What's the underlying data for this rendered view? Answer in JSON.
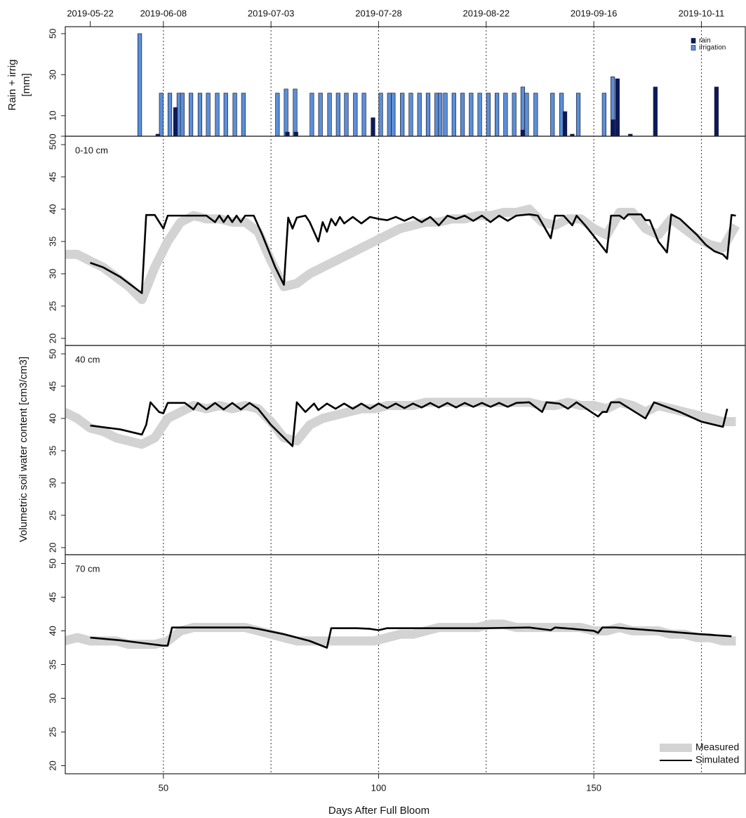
{
  "chart_data": [
    {
      "type": "bar",
      "ylabel": [
        "Rain + irrig",
        "[mm]"
      ],
      "xlim": [
        27.2,
        185.2
      ],
      "ylim": [
        0,
        53.4
      ],
      "yticks": [
        0,
        10,
        30,
        50
      ],
      "x2ticks": [
        {
          "value": 33,
          "label": "2019-05-22"
        },
        {
          "value": 50,
          "label": "2019-06-08"
        },
        {
          "value": 75,
          "label": "2019-07-03"
        },
        {
          "value": 100,
          "label": "2019-07-28"
        },
        {
          "value": 125,
          "label": "2019-08-22"
        },
        {
          "value": 150,
          "label": "2019-09-16"
        },
        {
          "value": 175,
          "label": "2019-10-11"
        }
      ],
      "vlines": [
        50,
        75,
        100,
        125,
        150,
        175
      ],
      "legend": "top-right",
      "series": [
        {
          "name": "rain",
          "color": "#0b1a5e",
          "x": [
            48.7,
            52.8,
            78.8,
            80.8,
            98.7,
            133.5,
            143.3,
            145,
            154.5,
            155.5,
            158.5,
            164.3,
            178.5
          ],
          "values": [
            1,
            14,
            2,
            2,
            9,
            3,
            12,
            1,
            8,
            28,
            1,
            24,
            24
          ]
        },
        {
          "name": "irrigation",
          "color": "#5b8fd9",
          "x": [
            44.5,
            49.5,
            51.5,
            53.6,
            54.4,
            56.4,
            58.5,
            60.4,
            62.5,
            64.5,
            66.6,
            68.6,
            76.5,
            78.5,
            80.6,
            84.5,
            86.5,
            88.6,
            90.6,
            92.5,
            94.6,
            96.6,
            100.5,
            102.5,
            103.4,
            105.5,
            107.5,
            109.5,
            111.5,
            113.5,
            114.3,
            115.5,
            117.5,
            119.5,
            121.5,
            123.5,
            125.5,
            127.5,
            129.5,
            131.5,
            133.5,
            134.4,
            136.5,
            140.4,
            142.5,
            146.4,
            152.4,
            154.4
          ],
          "values": [
            50,
            21,
            21,
            21,
            21,
            21,
            21,
            21,
            21,
            21,
            21,
            21,
            21,
            23,
            23,
            21,
            21,
            21,
            21,
            21,
            21,
            21,
            21,
            21,
            21,
            21,
            21,
            21,
            21,
            21,
            21,
            21,
            21,
            21,
            21,
            21,
            21,
            21,
            21,
            21,
            24,
            21,
            21,
            21,
            21,
            21,
            21,
            29
          ]
        }
      ]
    },
    {
      "type": "line",
      "annotation": "0-10 cm",
      "xlim": [
        27.2,
        185.2
      ],
      "ylim": [
        18.9,
        51.3
      ],
      "yticks": [
        20,
        25,
        30,
        35,
        40,
        45,
        50
      ],
      "series": [
        {
          "color": "#d3d3d3",
          "x": [
            27,
            30,
            33,
            36,
            39,
            42,
            45,
            48,
            51,
            54,
            57,
            60,
            63,
            66,
            69,
            72,
            75,
            78,
            81,
            84,
            87,
            90,
            93,
            96,
            99,
            102,
            105,
            108,
            111,
            114,
            117,
            120,
            123,
            126,
            129,
            132,
            135,
            138,
            141,
            144,
            147,
            150,
            153,
            156,
            159,
            162,
            165,
            168,
            171,
            174,
            177,
            180,
            183
          ],
          "values": [
            33,
            33,
            32,
            31,
            29.5,
            28,
            26,
            31,
            35,
            38,
            39,
            38.5,
            38.5,
            38,
            38,
            36.5,
            32,
            28,
            28.5,
            30,
            31,
            32,
            33,
            34,
            35,
            36,
            37,
            37.5,
            38,
            38,
            38.5,
            38.5,
            39,
            39,
            39.5,
            39.5,
            40,
            38,
            37.5,
            38.5,
            38.5,
            37,
            36,
            39.5,
            39.5,
            37,
            36,
            38.5,
            37,
            35.5,
            34.5,
            34,
            37.5
          ]
        },
        {
          "color": "#000000",
          "x": [
            33,
            36,
            40,
            45,
            46,
            48,
            50,
            51,
            55,
            60,
            62,
            63,
            64,
            65,
            66,
            67,
            68,
            69,
            71,
            73,
            76,
            78,
            79,
            80,
            81,
            83,
            84,
            86,
            87,
            88,
            89,
            90,
            91,
            92,
            94,
            96,
            98,
            100,
            102,
            104,
            106,
            108,
            110,
            112,
            114,
            116,
            118,
            120,
            122,
            124,
            126,
            128,
            130,
            132,
            135,
            137,
            140,
            141,
            143,
            145,
            146,
            148,
            151,
            153,
            154,
            156,
            157,
            158,
            161,
            162,
            163,
            165,
            167,
            168,
            170,
            174,
            176,
            178,
            180,
            181,
            182,
            183
          ],
          "values": [
            31.7,
            31,
            29.5,
            27,
            39.1,
            39.1,
            37,
            39,
            39,
            39,
            38,
            39,
            38,
            39,
            38,
            39,
            38,
            39,
            39,
            36,
            31,
            28.3,
            38.7,
            37,
            38.7,
            39,
            38,
            35,
            38,
            36.5,
            38.5,
            37.5,
            38.8,
            37.8,
            38.8,
            37.8,
            38.8,
            38.5,
            38.3,
            38.8,
            38.2,
            38.8,
            38,
            38.8,
            37.5,
            39,
            38.5,
            39,
            38.2,
            39,
            38,
            39,
            38.2,
            39,
            39.2,
            39,
            35.5,
            39,
            39,
            37.5,
            39,
            37.5,
            35,
            33.3,
            39,
            39,
            38.5,
            39.2,
            39.2,
            38.3,
            38.3,
            35,
            33.3,
            39.2,
            38.5,
            36,
            34.5,
            33.5,
            33,
            32.3,
            39.1,
            39
          ]
        }
      ]
    },
    {
      "type": "line",
      "annotation": "40 cm",
      "ylabel": "Volumetric soil water content [cm3/cm3]",
      "xlim": [
        27.2,
        185.2
      ],
      "ylim": [
        18.9,
        51.3
      ],
      "yticks": [
        20,
        25,
        30,
        35,
        40,
        45,
        50
      ],
      "series": [
        {
          "color": "#d3d3d3",
          "x": [
            27,
            30,
            33,
            36,
            39,
            42,
            45,
            48,
            51,
            54,
            57,
            60,
            63,
            66,
            69,
            72,
            75,
            78,
            81,
            84,
            87,
            90,
            93,
            96,
            99,
            102,
            105,
            108,
            111,
            114,
            117,
            120,
            123,
            126,
            129,
            132,
            135,
            138,
            141,
            144,
            147,
            150,
            153,
            156,
            159,
            162,
            165,
            168,
            171,
            174,
            177,
            180,
            183
          ],
          "values": [
            41,
            40,
            38.5,
            38,
            37,
            36.5,
            36,
            37,
            40,
            41,
            42,
            41.5,
            42,
            41.5,
            42,
            41.5,
            39.5,
            37,
            36.5,
            39,
            40,
            40.5,
            41,
            41.5,
            41.5,
            42,
            42,
            42,
            42.5,
            42.5,
            42.5,
            42.5,
            42.5,
            42.5,
            42.5,
            42.5,
            42.5,
            42,
            42,
            42.5,
            42,
            42,
            41.5,
            42.5,
            42,
            41,
            42,
            41.5,
            41,
            40.5,
            40,
            39.5,
            39.5
          ]
        },
        {
          "color": "#000000",
          "x": [
            33,
            40,
            45,
            46,
            47,
            49,
            50,
            51,
            55,
            57,
            58,
            60,
            62,
            64,
            66,
            68,
            70,
            72,
            75,
            80,
            81,
            83,
            85,
            86,
            88,
            90,
            92,
            94,
            96,
            98,
            100,
            102,
            104,
            106,
            108,
            110,
            112,
            114,
            116,
            118,
            120,
            122,
            124,
            126,
            128,
            130,
            132,
            135,
            138,
            139,
            142,
            144,
            146,
            151,
            152,
            153,
            154,
            156,
            162,
            164,
            170,
            175,
            180,
            181
          ],
          "values": [
            38.9,
            38.3,
            37.5,
            39,
            42.5,
            41,
            40.8,
            42.4,
            42.4,
            41.4,
            42.4,
            41.4,
            42.4,
            41.4,
            42.4,
            41.4,
            42.4,
            41.5,
            39,
            35.7,
            42.5,
            41,
            42.3,
            41.3,
            42.3,
            41.5,
            42.3,
            41.5,
            42.3,
            41.5,
            42.3,
            41.6,
            42.3,
            41.6,
            42.3,
            41.7,
            42.4,
            41.7,
            42.4,
            41.7,
            42.4,
            41.8,
            42.4,
            41.8,
            42.4,
            41.8,
            42.4,
            42.5,
            41,
            42.5,
            42.3,
            41.5,
            42.5,
            40.3,
            41,
            41,
            42.5,
            42.5,
            40,
            42.5,
            41,
            39.5,
            38.7,
            41.5
          ]
        }
      ]
    },
    {
      "type": "line",
      "annotation": "70 cm",
      "xlabel": "Days After Full Bloom",
      "xlim": [
        27.2,
        185.2
      ],
      "ylim": [
        18.8,
        51.3
      ],
      "yticks": [
        20,
        25,
        30,
        35,
        40,
        45,
        50
      ],
      "xticks": [
        50,
        100,
        150
      ],
      "legend": "bottom-right",
      "series": [
        {
          "name": "Measured",
          "color": "#d3d3d3",
          "x": [
            27,
            30,
            33,
            36,
            39,
            42,
            45,
            48,
            51,
            54,
            57,
            60,
            63,
            66,
            69,
            72,
            75,
            78,
            81,
            84,
            87,
            90,
            93,
            96,
            99,
            102,
            105,
            108,
            111,
            114,
            117,
            120,
            123,
            126,
            129,
            132,
            135,
            138,
            141,
            144,
            147,
            150,
            153,
            156,
            159,
            162,
            165,
            168,
            171,
            174,
            177,
            180,
            183
          ],
          "values": [
            38.5,
            39,
            38.5,
            38.5,
            38.5,
            38,
            38,
            38,
            38.5,
            40,
            40.5,
            40.5,
            40.5,
            40.5,
            40.5,
            40,
            39.5,
            39,
            38.5,
            38.5,
            38.5,
            38.5,
            38.5,
            38.5,
            38.5,
            39,
            39.5,
            39.5,
            40,
            40.5,
            40.5,
            40.5,
            40.5,
            41,
            41,
            40.5,
            40.5,
            40.5,
            40.5,
            40.5,
            40.5,
            40,
            40,
            40.5,
            40,
            40,
            40,
            39.5,
            39.5,
            39,
            39,
            38.5,
            38.5
          ]
        },
        {
          "name": "Simulated",
          "color": "#000000",
          "x": [
            33,
            40,
            45,
            50,
            51,
            52,
            60,
            70,
            72,
            78,
            84,
            88,
            89,
            95,
            98,
            100,
            102,
            110,
            125,
            135,
            140,
            141,
            145,
            150,
            151,
            152,
            155,
            165,
            175,
            182
          ],
          "values": [
            39,
            38.6,
            38.2,
            37.8,
            37.8,
            40.5,
            40.5,
            40.5,
            40.3,
            39.5,
            38.5,
            37.5,
            40.4,
            40.4,
            40.3,
            40.1,
            40.4,
            40.4,
            40.4,
            40.5,
            40.1,
            40.5,
            40.3,
            40,
            39.7,
            40.5,
            40.5,
            40,
            39.5,
            39.2
          ]
        }
      ]
    }
  ]
}
